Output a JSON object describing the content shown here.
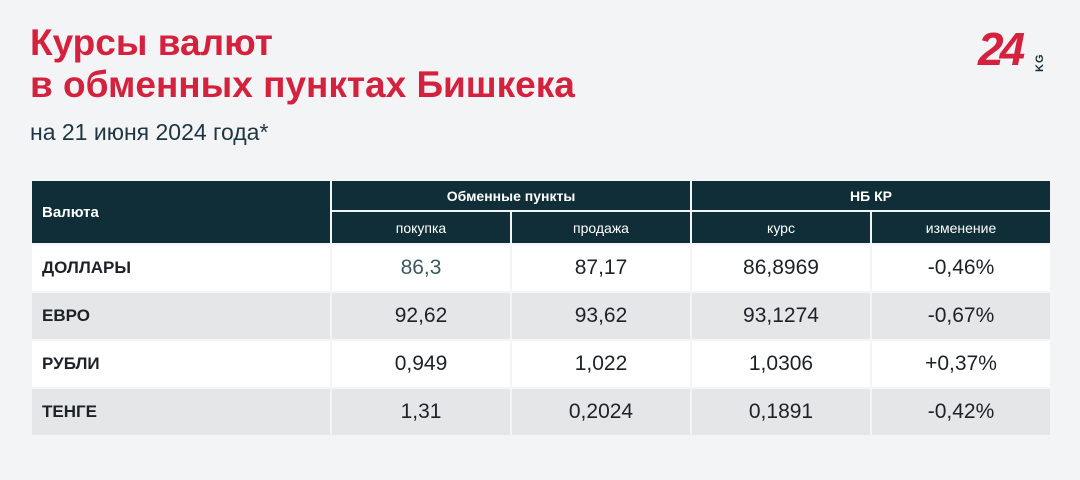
{
  "title": {
    "line1": "Курсы валют",
    "line2": "в обменных пунктах Бишкека"
  },
  "subtitle": "на 21 июня 2024 года*",
  "logo": {
    "number": "24",
    "suffix": "KG"
  },
  "colors": {
    "accent": "#d4213d",
    "header_bg": "#0f2e38",
    "page_bg": "#f3f4f6"
  },
  "table": {
    "corner_label": "Валюта",
    "groups": [
      "Обменные пункты",
      "НБ КР"
    ],
    "subheaders": [
      "покупка",
      "продажа",
      "курс",
      "изменение"
    ],
    "rows": [
      {
        "currency": "ДОЛЛАРЫ",
        "buy": "86,3",
        "sell": "87,17",
        "rate": "86,8969",
        "change": "-0,46%"
      },
      {
        "currency": "ЕВРО",
        "buy": "92,62",
        "sell": "93,62",
        "rate": "93,1274",
        "change": "-0,67%"
      },
      {
        "currency": "РУБЛИ",
        "buy": "0,949",
        "sell": "1,022",
        "rate": "1,0306",
        "change": "+0,37%"
      },
      {
        "currency": "ТЕНГЕ",
        "buy": "1,31",
        "sell": "0,2024",
        "rate": "0,1891",
        "change": "-0,42%"
      }
    ]
  }
}
